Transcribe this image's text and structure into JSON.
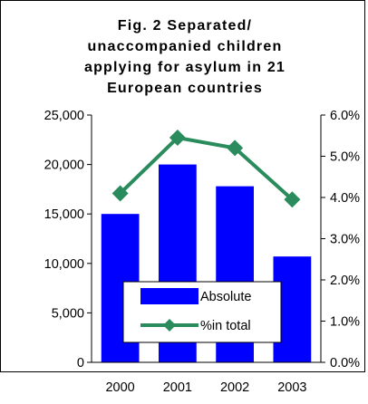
{
  "chart_data": {
    "type": "bar",
    "title_lines": [
      "Fig. 2 Separated/",
      "unaccompanied children",
      "applying for asylum in 21",
      "European countries"
    ],
    "categories": [
      "2000",
      "2001",
      "2002",
      "2003"
    ],
    "series": [
      {
        "name": "Absolute",
        "type": "bar",
        "axis": "left",
        "color": "#0000ff",
        "values": [
          15000,
          20000,
          17800,
          10700
        ]
      },
      {
        "name": "%in total",
        "type": "line",
        "axis": "right",
        "color": "#2a8c5c",
        "marker": "diamond",
        "values": [
          4.1,
          5.45,
          5.2,
          3.95
        ]
      }
    ],
    "y_left": {
      "ylim": [
        0,
        25000
      ],
      "tick_labels": [
        "0",
        "5,000",
        "10,000",
        "15,000",
        "20,000",
        "25,000"
      ]
    },
    "y_right": {
      "ylim": [
        0,
        6.0
      ],
      "tick_labels": [
        "0.0%",
        "1.0%",
        "2.0%",
        "3.0%",
        "4.0%",
        "5.0%",
        "6.0%"
      ]
    },
    "grid": false,
    "legend_position": "bottom-center inside plot"
  }
}
